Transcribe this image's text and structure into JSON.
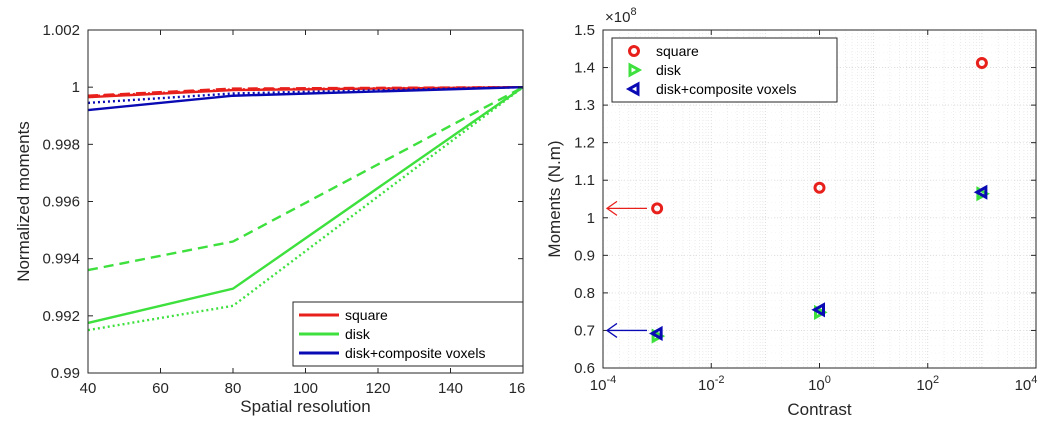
{
  "colors": {
    "red": "#e8201c",
    "green": "#3de03d",
    "blue": "#0a0ab4",
    "grid": "#d9d9d9"
  },
  "chart_data": [
    {
      "type": "line",
      "xlabel": "Spatial resolution",
      "ylabel": "Normalized moments",
      "xlim": [
        40,
        160
      ],
      "ylim": [
        0.99,
        1.002
      ],
      "x_tick_labels": [
        "40",
        "60",
        "80",
        "100",
        "120",
        "140",
        "16"
      ],
      "y_tick_labels": [
        "0.99",
        "0.992",
        "0.994",
        "0.996",
        "0.998",
        "1",
        "1.002"
      ],
      "grid": false,
      "legend_position": "bottom-right",
      "legend": [
        "square",
        "disk",
        "disk+composite voxels"
      ],
      "x": [
        40,
        80,
        160
      ],
      "series": [
        {
          "name": "square",
          "color_key": "red",
          "style": "solid",
          "values": [
            0.99965,
            0.9999,
            1.0
          ]
        },
        {
          "name": "square",
          "color_key": "red",
          "style": "dashed",
          "values": [
            0.9997,
            0.99995,
            1.0
          ]
        },
        {
          "name": "square",
          "color_key": "red",
          "style": "dotted",
          "values": [
            0.99968,
            0.99992,
            1.0
          ]
        },
        {
          "name": "disk",
          "color_key": "green",
          "style": "solid",
          "values": [
            0.99175,
            0.99295,
            1.0
          ]
        },
        {
          "name": "disk",
          "color_key": "green",
          "style": "dashed",
          "values": [
            0.9936,
            0.9946,
            1.0
          ]
        },
        {
          "name": "disk",
          "color_key": "green",
          "style": "dotted",
          "values": [
            0.9915,
            0.99235,
            1.0
          ]
        },
        {
          "name": "disk+composite voxels",
          "color_key": "blue",
          "style": "solid",
          "values": [
            0.9992,
            0.9997,
            1.0
          ]
        },
        {
          "name": "disk+composite voxels",
          "color_key": "blue",
          "style": "dotted",
          "values": [
            0.99945,
            0.99978,
            1.0
          ]
        }
      ]
    },
    {
      "type": "scatter",
      "xlabel": "Contrast",
      "ylabel": "Moments (N.m)",
      "x_scale": "log",
      "xlim": [
        0.0001,
        10000
      ],
      "ylim": [
        0.6,
        1.5
      ],
      "y_exponent_label": "×10",
      "y_exponent_power": "8",
      "x_tick_labels": [
        {
          "base": "10",
          "exp": "-4"
        },
        {
          "base": "10",
          "exp": "-2"
        },
        {
          "base": "10",
          "exp": "0"
        },
        {
          "base": "10",
          "exp": "2"
        },
        {
          "base": "10",
          "exp": "4"
        }
      ],
      "y_tick_labels": [
        "0.6",
        "0.7",
        "0.8",
        "0.9",
        "1",
        "1.1",
        "1.2",
        "1.3",
        "1.4",
        "1.5"
      ],
      "grid": true,
      "legend_position": "top-left",
      "legend": [
        "square",
        "disk",
        "disk+composite voxels"
      ],
      "series": [
        {
          "name": "square",
          "color_key": "red",
          "marker": "circle",
          "x": [
            0.001,
            1,
            1000
          ],
          "values": [
            1.025,
            1.08,
            1.412
          ]
        },
        {
          "name": "disk",
          "color_key": "green",
          "marker": "triangle-right",
          "x": [
            0.001,
            1,
            1000
          ],
          "values": [
            0.685,
            0.748,
            1.064
          ]
        },
        {
          "name": "disk+composite voxels",
          "color_key": "blue",
          "marker": "triangle-left",
          "x": [
            0.001,
            1,
            1000
          ],
          "values": [
            0.692,
            0.755,
            1.068
          ]
        }
      ],
      "annotations": [
        {
          "type": "arrow",
          "color_key": "red",
          "direction": "left",
          "y": 1.025
        },
        {
          "type": "arrow",
          "color_key": "blue",
          "direction": "left",
          "y": 0.7
        }
      ]
    }
  ]
}
